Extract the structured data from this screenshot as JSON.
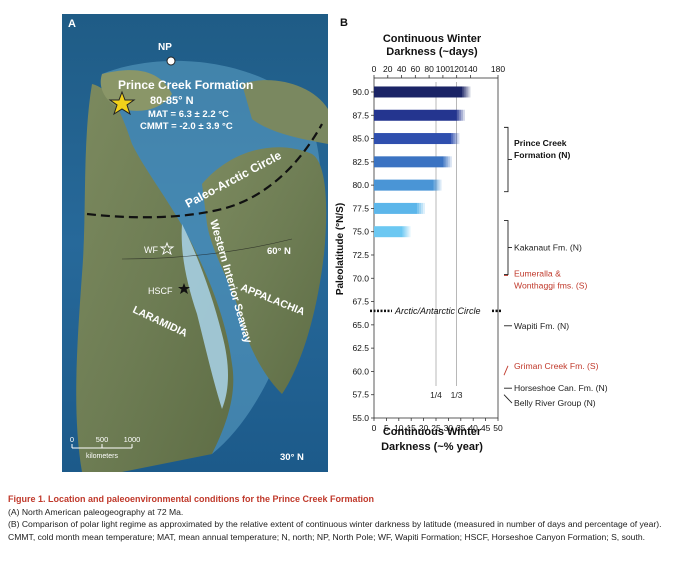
{
  "panel_a": {
    "label": "A",
    "north_pole": "NP",
    "formation_title": "Prince Creek Formation",
    "formation_lat": "80-85° N",
    "mat": "MAT = 6.3 ± 2.2 °C",
    "cmmt": "CMMT = -2.0 ± 3.9 °C",
    "arctic_circle": "Paleo-Arctic Circle",
    "seaway": "Western Interior Seaway",
    "appalachia": "APPALACHIA",
    "laramidia": "LARAMIDIA",
    "wf": "WF",
    "hscf": "HSCF",
    "lat60": "60° N",
    "lat30": "30° N",
    "scale_ticks": [
      "0",
      "500",
      "1000"
    ],
    "scale_unit": "kilometers"
  },
  "panel_b": {
    "label": "B",
    "arctic_circle_label": "Arctic/Antarctic Circle",
    "fraction_labels": [
      "1/4",
      "1/3"
    ],
    "annotations": [
      {
        "text": "Prince Creek",
        "color": "#111111"
      },
      {
        "text": "Formation (N)",
        "color": "#111111"
      },
      {
        "text": "Kakanaut Fm. (N)",
        "color": "#222222"
      },
      {
        "text": "Eumeralla &",
        "color": "#c0392b"
      },
      {
        "text": "Wonthaggi fms. (S)",
        "color": "#c0392b"
      },
      {
        "text": "Wapiti Fm. (N)",
        "color": "#222222"
      },
      {
        "text": "Griman Creek Fm. (S)",
        "color": "#c0392b"
      },
      {
        "text": "Horseshoe Can. Fm. (N)",
        "color": "#222222"
      },
      {
        "text": "Belly River Group (N)",
        "color": "#222222"
      }
    ]
  },
  "chart_data": {
    "type": "bar",
    "orientation": "horizontal",
    "top_title": [
      "Continuous Winter",
      "Darkness (~days)"
    ],
    "top_ticks": [
      "0",
      "20",
      "40",
      "60",
      "80",
      "100",
      "120",
      "140",
      "180"
    ],
    "top_lim": [
      0,
      180
    ],
    "bottom_title": [
      "Continuous Winter",
      "Darkness (~% year)"
    ],
    "bottom_ticks": [
      "0",
      "5",
      "10",
      "15",
      "20",
      "25",
      "30",
      "35",
      "40",
      "45",
      "50"
    ],
    "bottom_lim": [
      0,
      50
    ],
    "ylabel": "Paleolatitude (°N/S)",
    "y_ticks": [
      "90.0",
      "87.5",
      "85.0",
      "82.5",
      "80.0",
      "77.5",
      "75.0",
      "72.5",
      "70.0",
      "67.5",
      "65.0",
      "62.5",
      "60.0",
      "57.5",
      "55.0"
    ],
    "ylim": [
      55,
      91.5
    ],
    "categories": [
      90.0,
      87.5,
      85.0,
      82.5,
      80.0,
      77.5,
      75.0
    ],
    "values": [
      140,
      132,
      124,
      113,
      98,
      74,
      53
    ],
    "bar_colors": [
      "#1b2466",
      "#24358f",
      "#2f4fae",
      "#3b73c2",
      "#4a95d6",
      "#5cb6ea",
      "#6cc8f2"
    ],
    "arctic_circle_lat": 66.5,
    "fraction_lines_percent": [
      25,
      33.3
    ]
  },
  "caption": {
    "title": "Figure 1. Location and paleoenvironmental conditions for the Prince Creek Formation",
    "a": "(A) North American paleogeography at 72 Ma.",
    "b": "(B) Comparison of polar light regime as approximated by the relative extent of continuous winter darkness by latitude (measured in number of days and percentage of year).",
    "abbr": "CMMT, cold month mean temperature; MAT, mean annual temperature; N, north; NP, North Pole; WF, Wapiti Formation; HSCF, Horseshoe Canyon Formation; S, south."
  }
}
